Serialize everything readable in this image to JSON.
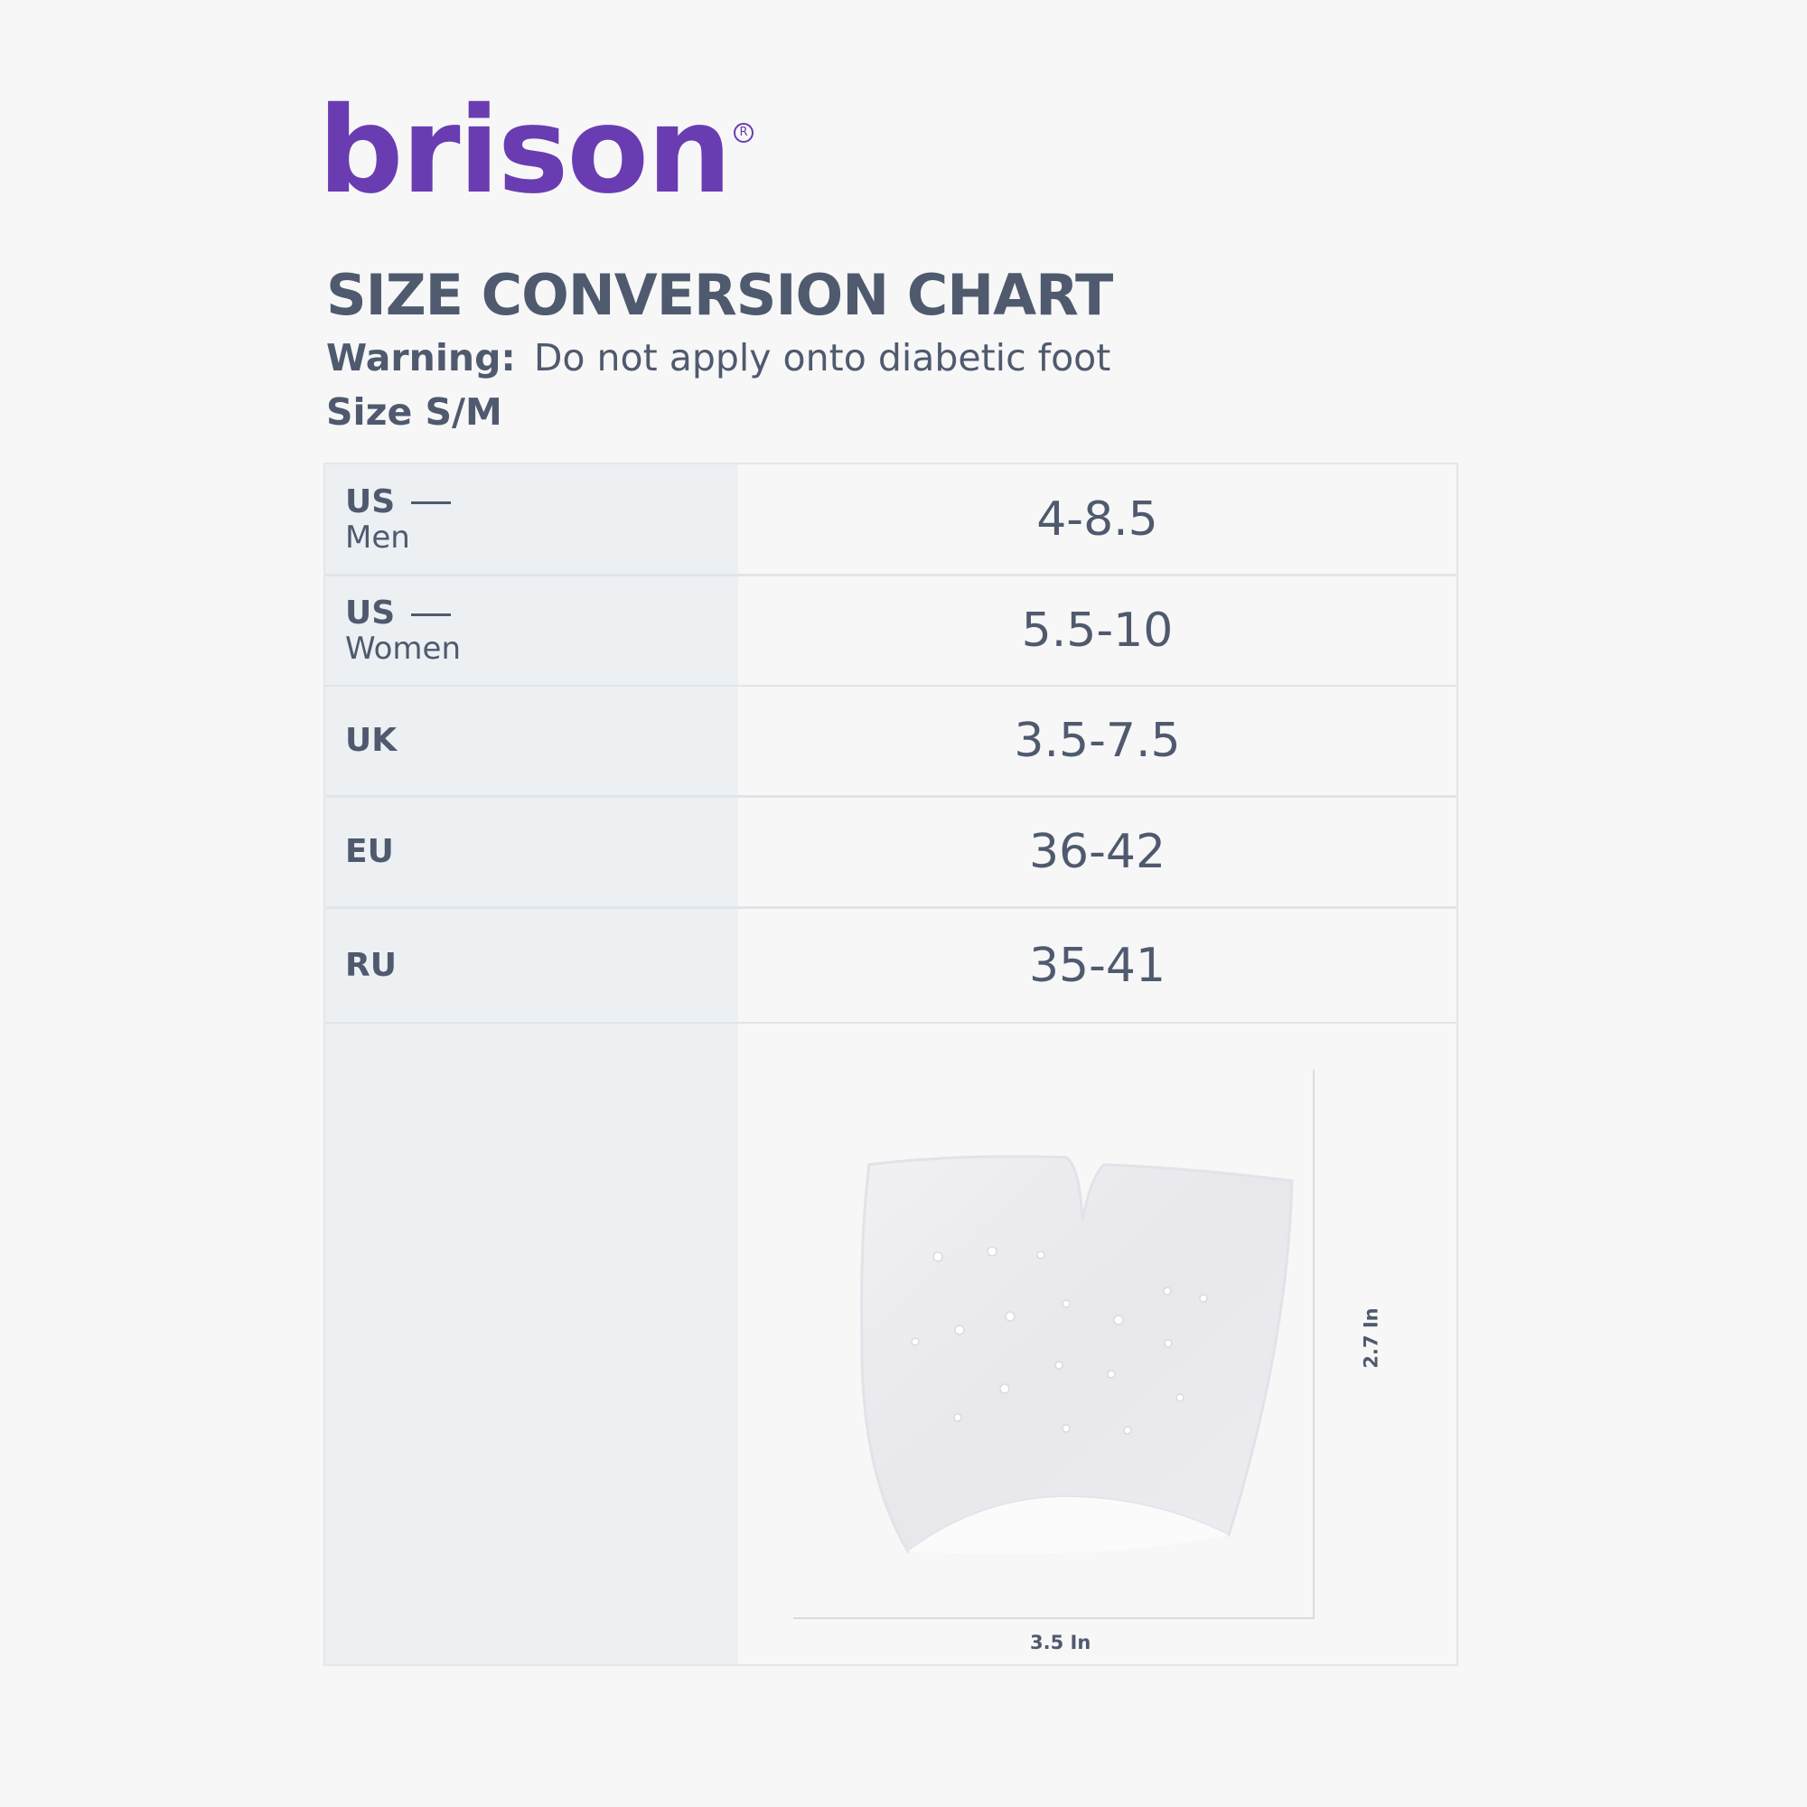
{
  "brand": {
    "name": "brison",
    "reg_mark": "R",
    "color": "#6a3cb2"
  },
  "title": "SIZE CONVERSION CHART",
  "warning": {
    "label": "Warning:",
    "text": "Do not apply onto diabetic foot"
  },
  "size_label": "Size S/M",
  "rows": [
    {
      "label": "US",
      "sub": "Men",
      "value": "4-8.5"
    },
    {
      "label": "US",
      "sub": "Women",
      "value": "5.5-10"
    },
    {
      "label": "UK",
      "sub": "",
      "value": "3.5-7.5"
    },
    {
      "label": "EU",
      "sub": "",
      "value": "36-42"
    },
    {
      "label": "RU",
      "sub": "",
      "value": "35-41"
    }
  ],
  "dimensions": {
    "width_label": "3.5 In",
    "height_label": "2.7 In"
  },
  "colors": {
    "text": "#4f5a6e",
    "label_column": "#edf0f3",
    "background": "#f7f7f7"
  }
}
